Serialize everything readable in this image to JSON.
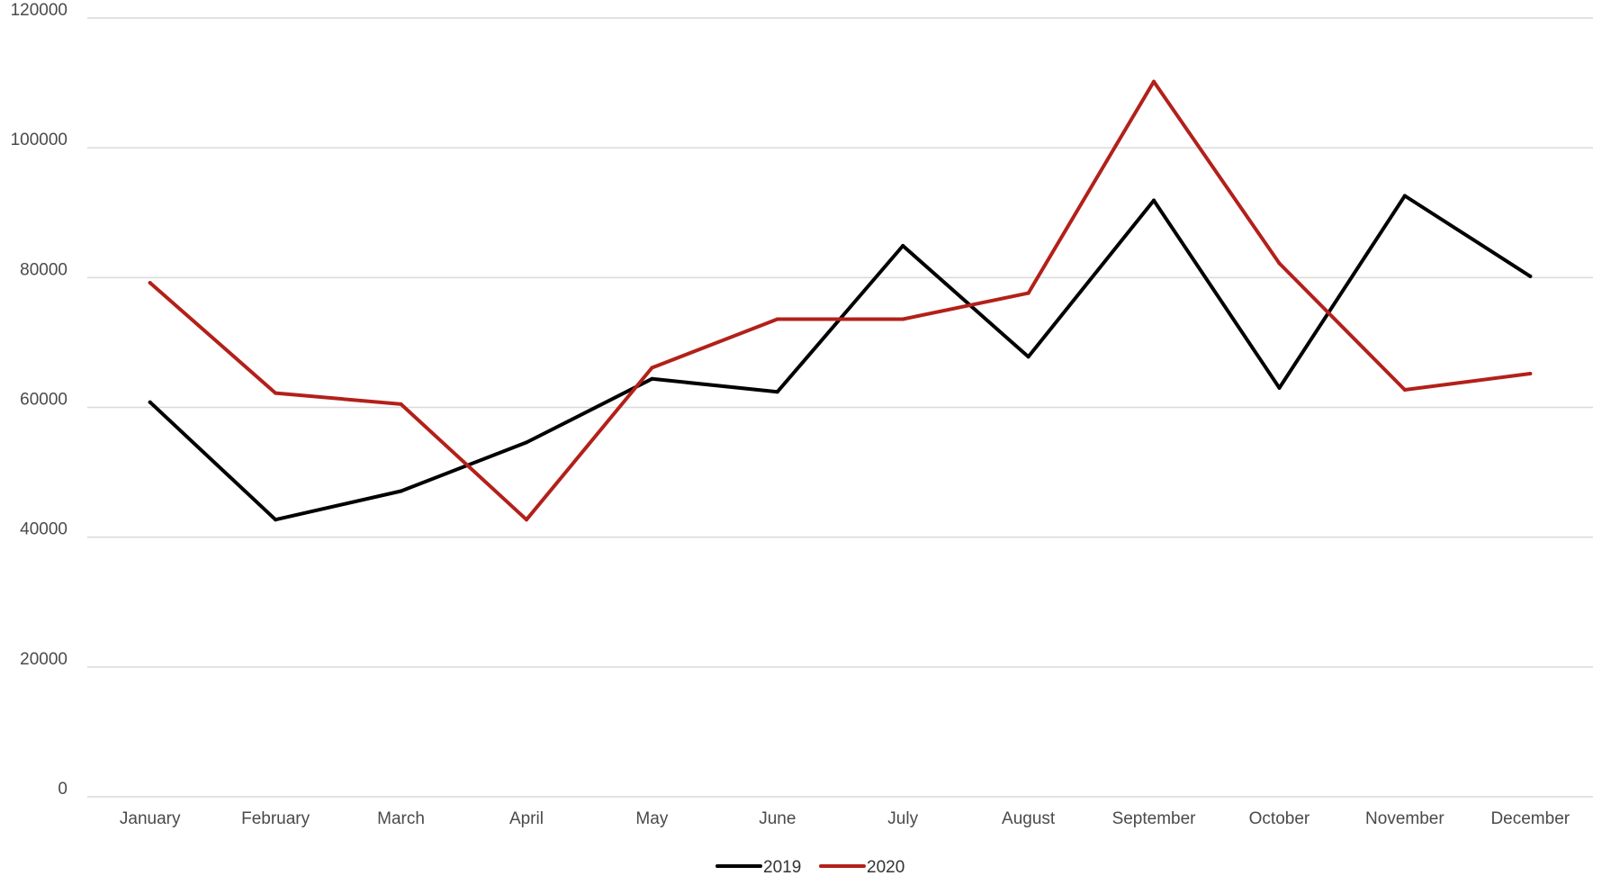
{
  "chart_data": {
    "type": "line",
    "title": "",
    "xlabel": "",
    "ylabel": "",
    "categories": [
      "January",
      "February",
      "March",
      "April",
      "May",
      "June",
      "July",
      "August",
      "September",
      "October",
      "November",
      "December"
    ],
    "series": [
      {
        "name": "2019",
        "color": "#000000",
        "values": [
          60800,
          42700,
          47100,
          54600,
          64400,
          62400,
          84900,
          67800,
          91900,
          63000,
          92600,
          80200
        ]
      },
      {
        "name": "2020",
        "color": "#b3201a",
        "values": [
          79200,
          62200,
          60500,
          42700,
          66100,
          73600,
          73600,
          77600,
          110200,
          82200,
          62700,
          65200
        ]
      }
    ],
    "ylim": [
      0,
      120000
    ],
    "yticks": [
      "0",
      "20000",
      "40000",
      "60000",
      "80000",
      "100000",
      "120000"
    ],
    "grid": true,
    "legend": "bottom-center",
    "gridColor": "#d9d9d9"
  }
}
